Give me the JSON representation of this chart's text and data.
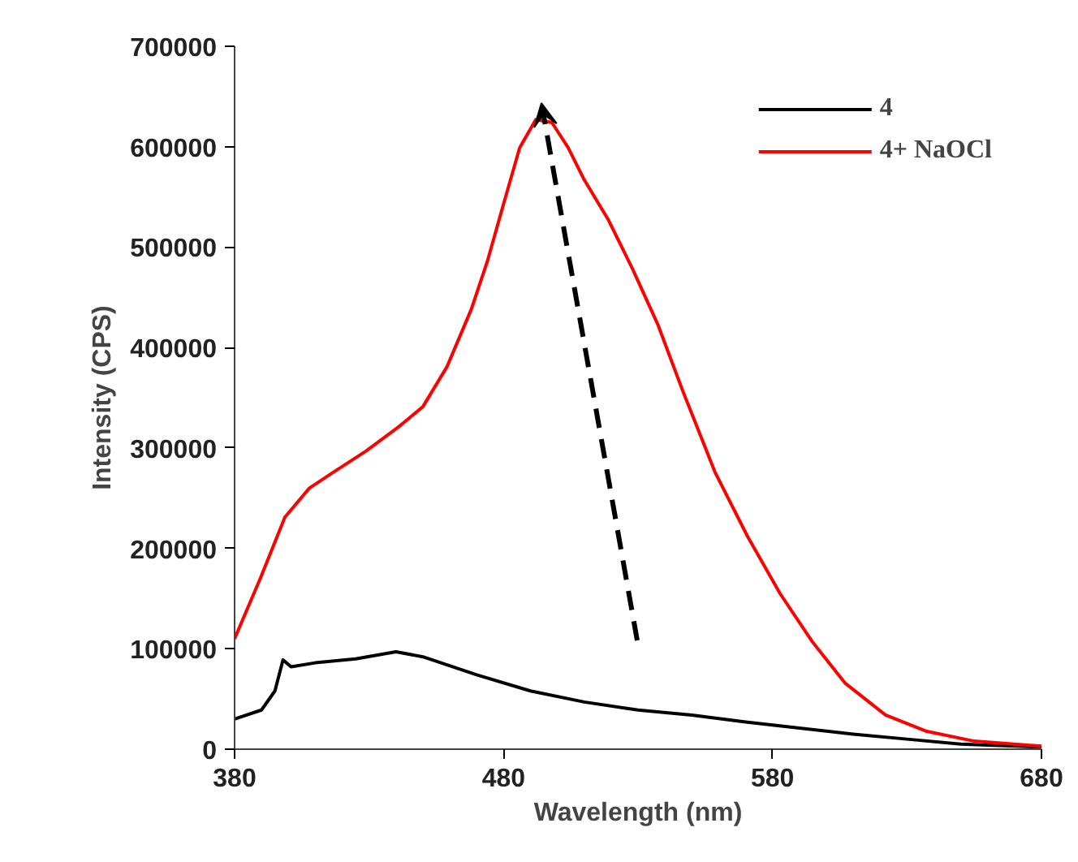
{
  "chart_data": {
    "type": "line",
    "xlabel": "Wavelength (nm)",
    "ylabel": "Intensity (CPS)",
    "xlim": [
      380,
      680
    ],
    "xticks": [
      380,
      480,
      580,
      680
    ],
    "ylim": [
      0,
      700000
    ],
    "yticks": [
      0,
      100000,
      200000,
      300000,
      400000,
      500000,
      600000,
      700000
    ],
    "grid": false,
    "legend": "top right",
    "line_style": "solid",
    "marker": "none",
    "series": [
      {
        "name": "4",
        "color": "#000000",
        "x": [
          380,
          390,
          395,
          398,
          401,
          410,
          425,
          440,
          450,
          470,
          490,
          510,
          530,
          550,
          570,
          590,
          610,
          630,
          650,
          680
        ],
        "values": [
          30000,
          39000,
          58000,
          89000,
          82000,
          86000,
          90000,
          97000,
          92000,
          74000,
          58000,
          47000,
          39000,
          34000,
          27000,
          21000,
          15000,
          10000,
          5000,
          2000
        ]
      },
      {
        "name": "4+ NaOCl",
        "color": "#ff0000",
        "x": [
          380,
          389.7,
          398.7,
          407.8,
          416.8,
          428.9,
          441,
          450,
          459,
          468,
          474,
          480,
          486,
          492,
          498,
          504,
          510,
          519,
          528,
          537.5,
          546.6,
          558.6,
          570.7,
          582.8,
          594.8,
          606.9,
          622,
          637,
          655,
          680
        ],
        "values": [
          110000,
          171000,
          231000,
          260000,
          276000,
          297000,
          321000,
          341000,
          381000,
          438000,
          486000,
          543000,
          599000,
          627000,
          624000,
          599000,
          567000,
          527000,
          478000,
          422000,
          357000,
          276000,
          212000,
          155000,
          107000,
          66000,
          34000,
          18000,
          8000,
          3000
        ]
      }
    ]
  }
}
